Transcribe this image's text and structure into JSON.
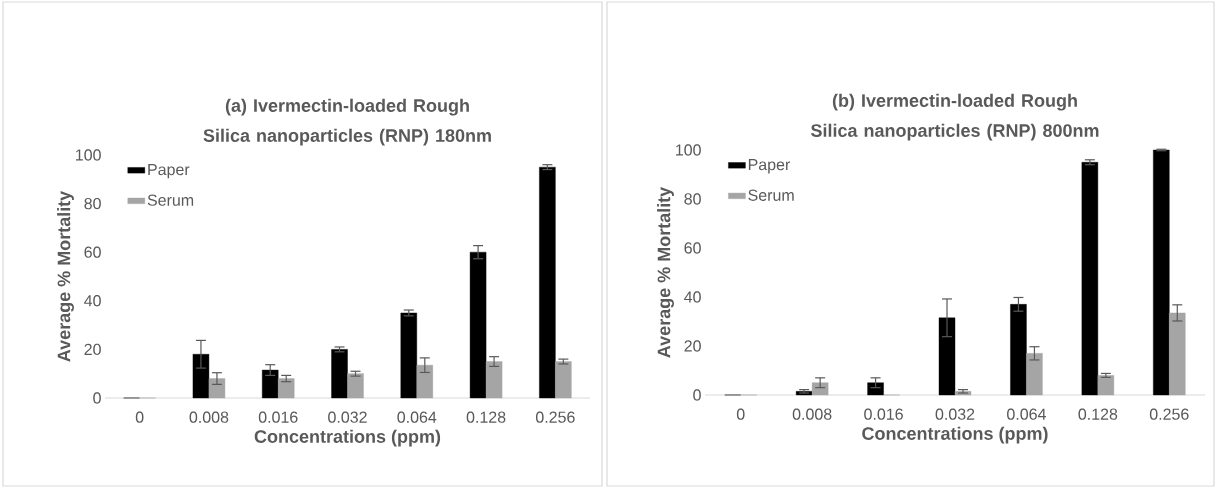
{
  "chart_data": [
    {
      "type": "bar",
      "title": "(a) Ivermectin-loaded Rough Silica nanoparticles (RNP) 180nm",
      "xlabel": "Concentrations (ppm)",
      "ylabel": "Average % Mortality",
      "categories": [
        "0",
        "0.008",
        "0.016",
        "0.032",
        "0.064",
        "0.128",
        "0.256"
      ],
      "series": [
        {
          "name": "Paper",
          "color": "#000000",
          "values": [
            0,
            18,
            11.5,
            20,
            35,
            60,
            95
          ],
          "errors": [
            null,
            5.7,
            2.2,
            1,
            1.2,
            2.7,
            1
          ]
        },
        {
          "name": "Serum",
          "color": "#a5a5a5",
          "values": [
            0,
            8,
            8,
            10,
            13.5,
            15,
            15
          ],
          "errors": [
            null,
            2.4,
            1.3,
            1,
            3,
            2,
            1
          ]
        }
      ],
      "ylim": [
        0,
        100
      ],
      "yticks": [
        0,
        20,
        40,
        60,
        80,
        100
      ],
      "legend": "top left"
    },
    {
      "type": "bar",
      "title": "(b) Ivermectin-loaded Rough Silica nanoparticles (RNP) 800nm",
      "xlabel": "Concentrations (ppm)",
      "ylabel": "Average % Mortality",
      "categories": [
        "0",
        "0.008",
        "0.016",
        "0.032",
        "0.064",
        "0.128",
        "0.256"
      ],
      "series": [
        {
          "name": "Paper",
          "color": "#000000",
          "values": [
            0,
            1.5,
            5,
            31.5,
            37,
            95,
            100
          ],
          "errors": [
            null,
            0.7,
            2,
            7.7,
            2.8,
            1,
            0.3
          ]
        },
        {
          "name": "Serum",
          "color": "#a5a5a5",
          "values": [
            0,
            5,
            0,
            1.5,
            17,
            8,
            33.5
          ],
          "errors": [
            null,
            2,
            null,
            0.7,
            2.7,
            0.8,
            3.3
          ]
        }
      ],
      "ylim": [
        0,
        100
      ],
      "yticks": [
        0,
        20,
        40,
        60,
        80,
        100
      ],
      "legend": "top left"
    }
  ]
}
